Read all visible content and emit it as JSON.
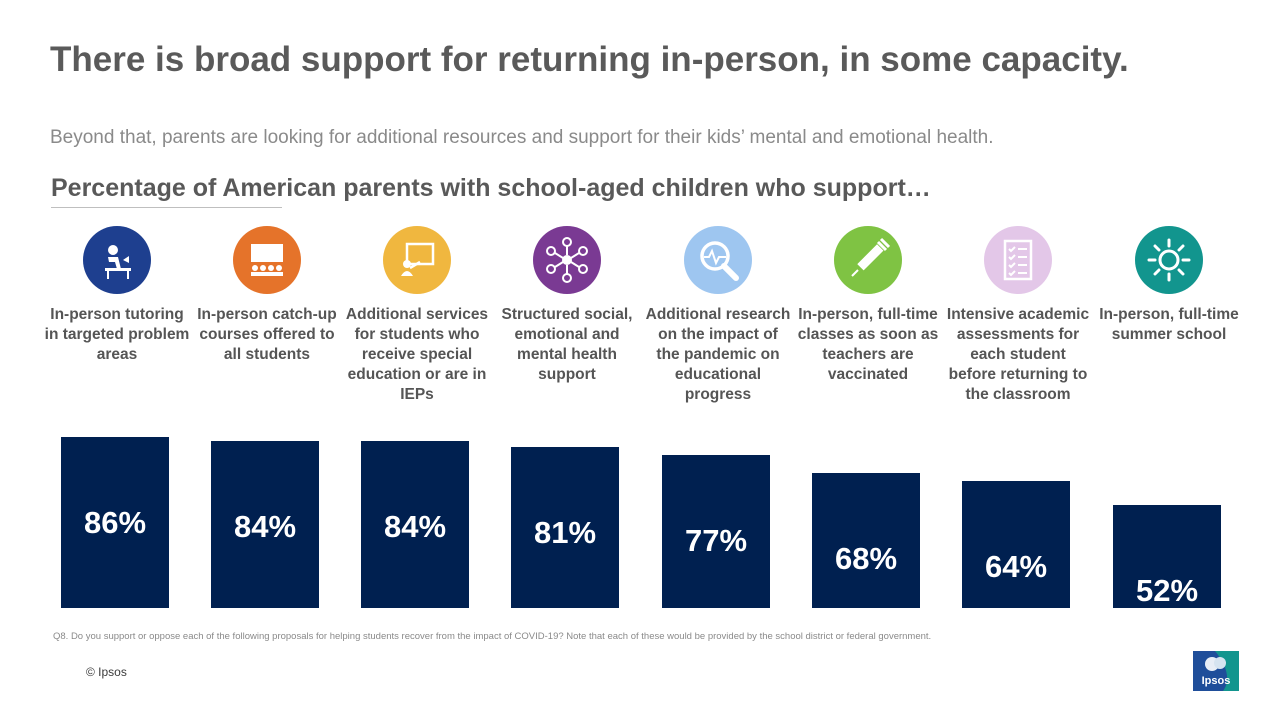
{
  "page": {
    "title": "There is broad support for returning in-person, in some capacity.",
    "subtitle": "Beyond that, parents are looking for additional resources and support for their kids’ mental and emotional health.",
    "footnote": "Q8. Do you support or oppose each of the following proposals for helping students recover from the impact of COVID-19? Note that each of these would be provided by the school district or federal government.",
    "copyright": "© Ipsos",
    "logo_text": "Ipsos"
  },
  "chart_data": {
    "type": "bar",
    "title": "Percentage of American parents with school-aged children who support…",
    "xlabel": "",
    "ylabel": "",
    "ylim": [
      0,
      100
    ],
    "grid": false,
    "categories": [
      "In-person tutoring in targeted problem areas",
      "In-person catch-up courses offered to all students",
      "Additional services for students who receive special education or are in IEPs",
      "Structured social, emotional and mental health support",
      "Additional research on the impact of the pandemic on educational progress",
      "In-person, full-time classes as soon as teachers are vaccinated",
      "Intensive academic assessments for each student before returning to the classroom",
      "In-person, full-time summer school"
    ],
    "values": [
      86,
      84,
      84,
      81,
      77,
      68,
      64,
      52
    ],
    "data_labels": [
      "86%",
      "84%",
      "84%",
      "81%",
      "77%",
      "68%",
      "64%",
      "52%"
    ],
    "bar_color": "#002050",
    "icons": [
      {
        "name": "tutor-desk-icon",
        "color": "#1e3f8f"
      },
      {
        "name": "classroom-icon",
        "color": "#e5732a"
      },
      {
        "name": "presentation-icon",
        "color": "#f0b73f"
      },
      {
        "name": "network-icon",
        "color": "#7a3a93"
      },
      {
        "name": "magnifier-pulse-icon",
        "color": "#9ec6f0"
      },
      {
        "name": "syringe-icon",
        "color": "#7fc343"
      },
      {
        "name": "checklist-icon",
        "color": "#e3c7e8"
      },
      {
        "name": "sun-icon",
        "color": "#12958e"
      }
    ]
  }
}
